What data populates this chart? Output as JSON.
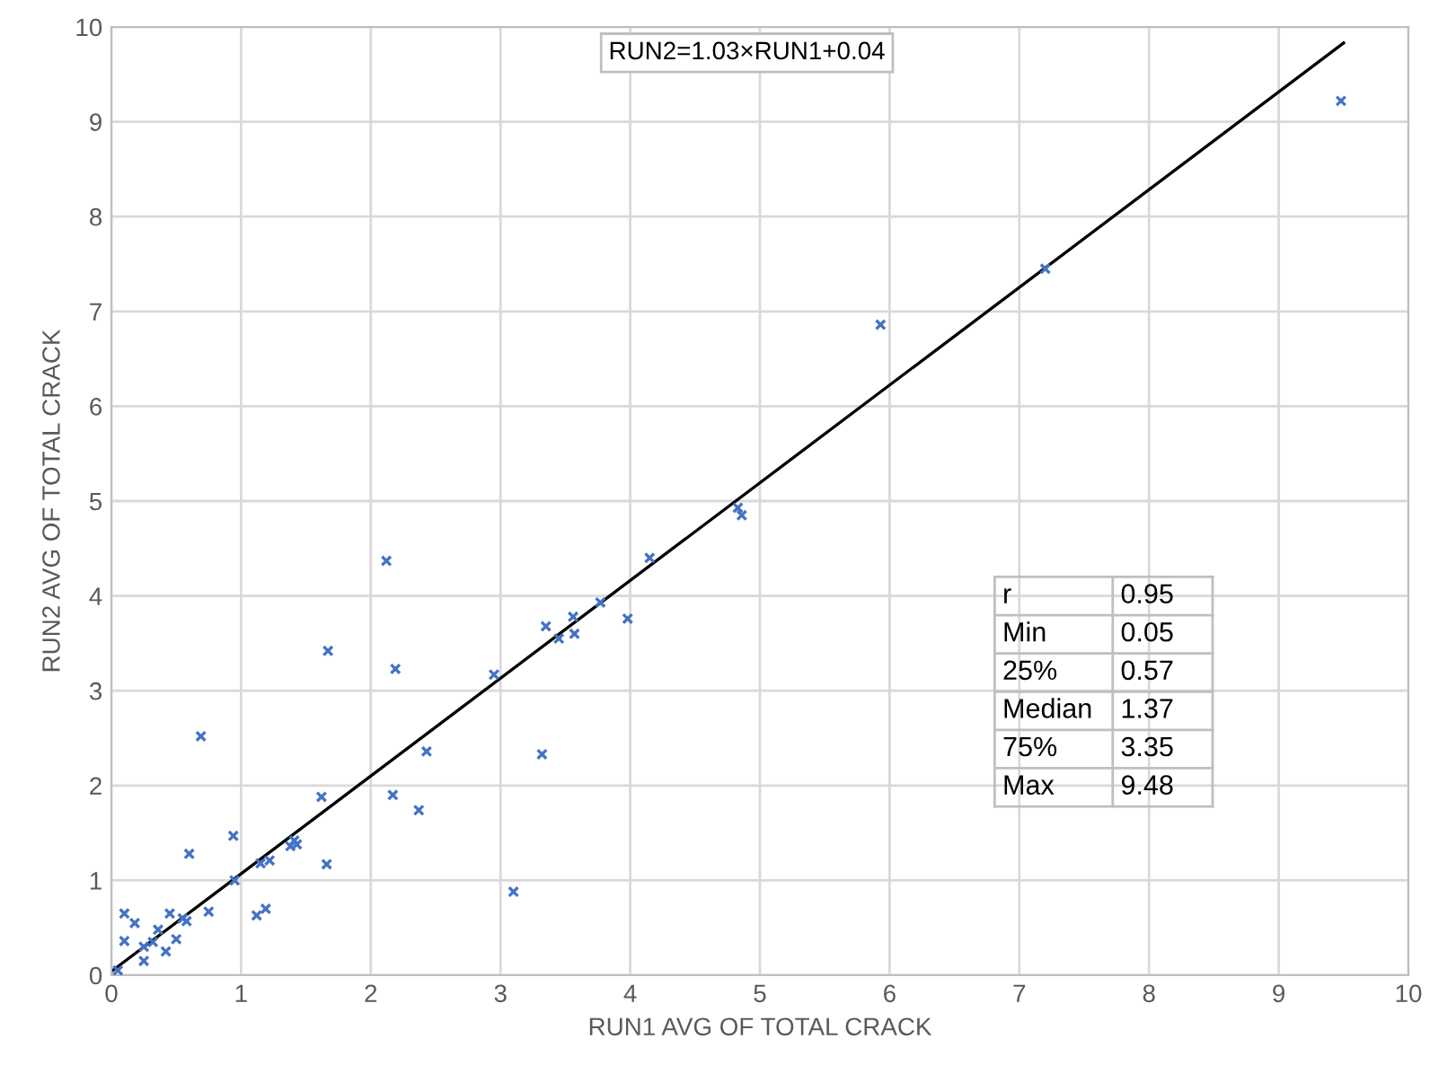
{
  "chart_data": {
    "type": "scatter",
    "xlabel": "RUN1 AVG OF TOTAL CRACK",
    "ylabel": "RUN2 AVG OF TOTAL CRACK",
    "xlim": [
      0,
      10
    ],
    "ylim": [
      0,
      10
    ],
    "xticks": [
      0,
      1,
      2,
      3,
      4,
      5,
      6,
      7,
      8,
      9,
      10
    ],
    "yticks": [
      0,
      1,
      2,
      3,
      4,
      5,
      6,
      7,
      8,
      9,
      10
    ],
    "grid": true,
    "marker": "cross",
    "series": [
      {
        "color": "#4472c4",
        "x": [
          9.48,
          7.2,
          5.93,
          4.83,
          4.86,
          4.15,
          2.12,
          1.67,
          3.77,
          3.98,
          3.35,
          3.45,
          3.57,
          3.56,
          2.95,
          2.19,
          3.32,
          2.43,
          2.37,
          2.17,
          1.62,
          0.69,
          0.94,
          1.38,
          1.41,
          1.43,
          0.6,
          1.15,
          1.22,
          0.95,
          1.66,
          1.12,
          1.19,
          3.1,
          0.1,
          0.18,
          0.45,
          0.75,
          0.58,
          0.5,
          0.1,
          0.25,
          0.32,
          0.36,
          0.42,
          0.25,
          0.05,
          0.55
        ],
        "values": [
          9.22,
          7.45,
          6.86,
          4.93,
          4.85,
          4.4,
          4.37,
          3.42,
          3.93,
          3.76,
          3.68,
          3.55,
          3.6,
          3.78,
          3.17,
          3.23,
          2.33,
          2.36,
          1.74,
          1.9,
          1.88,
          2.52,
          1.47,
          1.36,
          1.42,
          1.38,
          1.28,
          1.18,
          1.21,
          1.0,
          1.17,
          0.63,
          0.7,
          0.88,
          0.65,
          0.55,
          0.65,
          0.67,
          0.57,
          0.38,
          0.36,
          0.3,
          0.35,
          0.48,
          0.25,
          0.15,
          0.05,
          0.6
        ]
      },
      {
        "type": "line",
        "color": "#000000",
        "x": [
          0,
          9.5
        ],
        "values": [
          0.04,
          9.83
        ],
        "marker": "none"
      }
    ],
    "annotations": [
      "RUN2=1.03×RUN1+0.04",
      "r",
      "0.95",
      "Min",
      "0.05",
      "25%",
      "0.57",
      "Median",
      "1.37",
      "75%",
      "3.35",
      "Max",
      "9.48"
    ]
  }
}
